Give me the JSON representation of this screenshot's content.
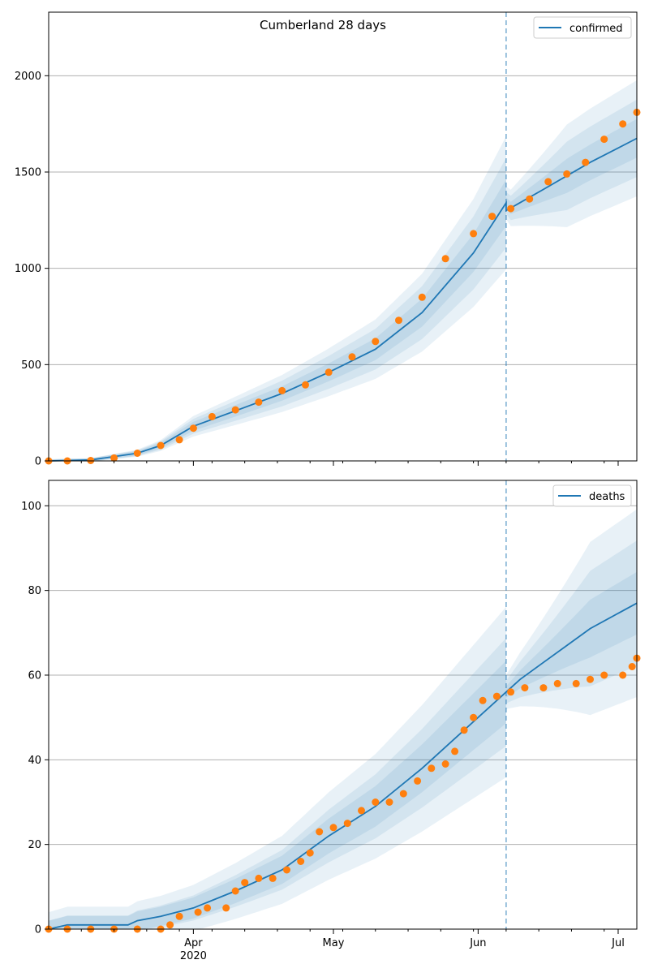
{
  "chart_data": [
    {
      "type": "line",
      "title": "Cumberland 28 days",
      "xlabel": "",
      "ylabel": "",
      "x_axis": "date",
      "xlim": [
        "2020-03-01",
        "2020-07-05"
      ],
      "ylim": [
        0,
        2330
      ],
      "yticks": [
        0,
        500,
        1000,
        1500,
        2000
      ],
      "xticks": [
        {
          "date": "2020-04-01",
          "label": "Apr",
          "sublabel": "2020"
        },
        {
          "date": "2020-05-01",
          "label": "May",
          "sublabel": ""
        },
        {
          "date": "2020-06-01",
          "label": "Jun",
          "sublabel": ""
        },
        {
          "date": "2020-07-01",
          "label": "Jul",
          "sublabel": ""
        }
      ],
      "grid": "y",
      "legend_position": "top-right",
      "forecast_start": "2020-06-07",
      "colors": {
        "model": "#1f77b4",
        "observed": "#ff7f0e",
        "band": "#1f77b4"
      },
      "series": [
        {
          "name": "confirmed",
          "kind": "line",
          "points": [
            [
              "2020-03-01",
              0
            ],
            [
              "2020-03-10",
              5
            ],
            [
              "2020-03-20",
              40
            ],
            [
              "2020-03-25",
              80
            ],
            [
              "2020-04-01",
              180
            ],
            [
              "2020-04-10",
              260
            ],
            [
              "2020-04-20",
              350
            ],
            [
              "2020-04-30",
              460
            ],
            [
              "2020-05-10",
              580
            ],
            [
              "2020-05-20",
              770
            ],
            [
              "2020-05-31",
              1080
            ],
            [
              "2020-06-07",
              1340
            ],
            [
              "2020-06-07",
              1300
            ],
            [
              "2020-06-15",
              1410
            ],
            [
              "2020-06-25",
              1550
            ],
            [
              "2020-07-05",
              1675
            ]
          ]
        },
        {
          "name": "",
          "kind": "scatter",
          "points": [
            [
              "2020-03-01",
              0
            ],
            [
              "2020-03-05",
              0
            ],
            [
              "2020-03-10",
              2
            ],
            [
              "2020-03-15",
              15
            ],
            [
              "2020-03-20",
              40
            ],
            [
              "2020-03-25",
              80
            ],
            [
              "2020-03-29",
              110
            ],
            [
              "2020-04-01",
              170
            ],
            [
              "2020-04-05",
              230
            ],
            [
              "2020-04-10",
              265
            ],
            [
              "2020-04-15",
              305
            ],
            [
              "2020-04-20",
              365
            ],
            [
              "2020-04-25",
              395
            ],
            [
              "2020-04-30",
              460
            ],
            [
              "2020-05-05",
              540
            ],
            [
              "2020-05-10",
              620
            ],
            [
              "2020-05-15",
              730
            ],
            [
              "2020-05-20",
              850
            ],
            [
              "2020-05-25",
              1050
            ],
            [
              "2020-05-31",
              1180
            ],
            [
              "2020-06-04",
              1270
            ],
            [
              "2020-06-08",
              1310
            ],
            [
              "2020-06-12",
              1360
            ],
            [
              "2020-06-16",
              1450
            ],
            [
              "2020-06-20",
              1490
            ],
            [
              "2020-06-24",
              1550
            ],
            [
              "2020-06-28",
              1670
            ],
            [
              "2020-07-02",
              1750
            ],
            [
              "2020-07-05",
              1810
            ]
          ]
        }
      ]
    },
    {
      "type": "line",
      "title": "",
      "xlabel": "",
      "ylabel": "",
      "x_axis": "date",
      "xlim": [
        "2020-03-01",
        "2020-07-05"
      ],
      "ylim": [
        0,
        106
      ],
      "yticks": [
        0,
        20,
        40,
        60,
        80,
        100
      ],
      "xticks": [
        {
          "date": "2020-04-01",
          "label": "Apr",
          "sublabel": "2020"
        },
        {
          "date": "2020-05-01",
          "label": "May",
          "sublabel": ""
        },
        {
          "date": "2020-06-01",
          "label": "Jun",
          "sublabel": ""
        },
        {
          "date": "2020-07-01",
          "label": "Jul",
          "sublabel": ""
        }
      ],
      "grid": "y",
      "legend_position": "top-right",
      "forecast_start": "2020-06-07",
      "colors": {
        "model": "#1f77b4",
        "observed": "#ff7f0e",
        "band": "#1f77b4"
      },
      "series": [
        {
          "name": "deaths",
          "kind": "line",
          "points": [
            [
              "2020-03-01",
              0
            ],
            [
              "2020-03-05",
              1
            ],
            [
              "2020-03-18",
              1
            ],
            [
              "2020-03-20",
              2
            ],
            [
              "2020-03-25",
              3
            ],
            [
              "2020-04-01",
              5
            ],
            [
              "2020-04-10",
              9
            ],
            [
              "2020-04-20",
              14
            ],
            [
              "2020-04-30",
              22
            ],
            [
              "2020-05-10",
              29
            ],
            [
              "2020-05-20",
              38
            ],
            [
              "2020-05-27",
              45
            ],
            [
              "2020-06-07",
              56
            ],
            [
              "2020-06-10",
              59
            ],
            [
              "2020-06-15",
              63
            ],
            [
              "2020-06-20",
              67
            ],
            [
              "2020-06-25",
              71
            ],
            [
              "2020-07-05",
              77
            ]
          ]
        },
        {
          "name": "",
          "kind": "scatter",
          "points": [
            [
              "2020-03-01",
              0
            ],
            [
              "2020-03-05",
              0
            ],
            [
              "2020-03-10",
              0
            ],
            [
              "2020-03-15",
              0
            ],
            [
              "2020-03-20",
              0
            ],
            [
              "2020-03-25",
              0
            ],
            [
              "2020-03-27",
              1
            ],
            [
              "2020-03-29",
              3
            ],
            [
              "2020-04-02",
              4
            ],
            [
              "2020-04-04",
              5
            ],
            [
              "2020-04-08",
              5
            ],
            [
              "2020-04-10",
              9
            ],
            [
              "2020-04-12",
              11
            ],
            [
              "2020-04-15",
              12
            ],
            [
              "2020-04-18",
              12
            ],
            [
              "2020-04-21",
              14
            ],
            [
              "2020-04-24",
              16
            ],
            [
              "2020-04-26",
              18
            ],
            [
              "2020-04-28",
              23
            ],
            [
              "2020-05-01",
              24
            ],
            [
              "2020-05-04",
              25
            ],
            [
              "2020-05-07",
              28
            ],
            [
              "2020-05-10",
              30
            ],
            [
              "2020-05-13",
              30
            ],
            [
              "2020-05-16",
              32
            ],
            [
              "2020-05-19",
              35
            ],
            [
              "2020-05-22",
              38
            ],
            [
              "2020-05-25",
              39
            ],
            [
              "2020-05-27",
              42
            ],
            [
              "2020-05-29",
              47
            ],
            [
              "2020-05-31",
              50
            ],
            [
              "2020-06-02",
              54
            ],
            [
              "2020-06-05",
              55
            ],
            [
              "2020-06-08",
              56
            ],
            [
              "2020-06-11",
              57
            ],
            [
              "2020-06-15",
              57
            ],
            [
              "2020-06-18",
              58
            ],
            [
              "2020-06-22",
              58
            ],
            [
              "2020-06-25",
              59
            ],
            [
              "2020-06-28",
              60
            ],
            [
              "2020-07-02",
              60
            ],
            [
              "2020-07-04",
              62
            ],
            [
              "2020-07-05",
              64
            ]
          ]
        }
      ]
    }
  ]
}
